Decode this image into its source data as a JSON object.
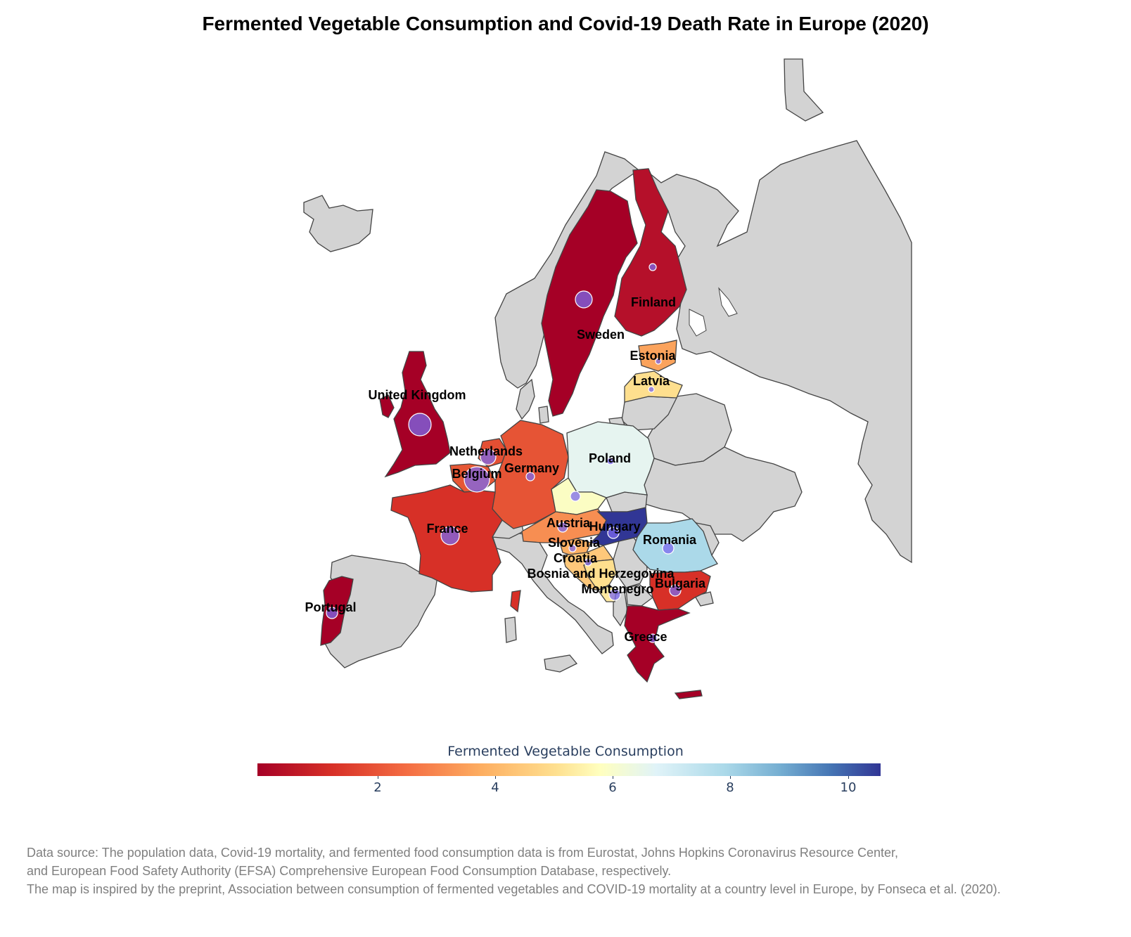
{
  "title": "Fermented Vegetable Consumption and Covid-19 Death Rate in Europe (2020)",
  "colorbar": {
    "title": "Fermented Vegetable Consumption",
    "ticks": [
      "2",
      "4",
      "6",
      "8",
      "10"
    ],
    "range": [
      0,
      10.6
    ],
    "colorscale": "RdYlBu"
  },
  "colors": {
    "no_data": "#d3d3d3",
    "bubble": "#7b68ee",
    "border": "#444444"
  },
  "countries": [
    {
      "name": "United Kingdom",
      "label": "United Kingdom",
      "color": "#a50026"
    },
    {
      "name": "Sweden",
      "label": "Sweden",
      "color": "#a50026"
    },
    {
      "name": "Finland",
      "label": "Finland",
      "color": "#b5102a"
    },
    {
      "name": "Estonia",
      "label": "Estonia",
      "color": "#fba35c"
    },
    {
      "name": "Latvia",
      "label": "Latvia",
      "color": "#fedf8e"
    },
    {
      "name": "Netherlands",
      "label": "Netherlands",
      "color": "#e34f33"
    },
    {
      "name": "Belgium",
      "label": "Belgium",
      "color": "#e65735"
    },
    {
      "name": "Germany",
      "label": "Germany",
      "color": "#e65435"
    },
    {
      "name": "Poland",
      "label": "Poland",
      "color": "#e6f4f0"
    },
    {
      "name": "Czechia",
      "label": "",
      "color": "#fbfdc3"
    },
    {
      "name": "France",
      "label": "France",
      "color": "#d73027"
    },
    {
      "name": "Austria",
      "label": "Austria",
      "color": "#f78e52"
    },
    {
      "name": "Hungary",
      "label": "Hungary",
      "color": "#313695"
    },
    {
      "name": "Slovenia",
      "label": "Slovenia",
      "color": "#fdb063"
    },
    {
      "name": "Croatia",
      "label": "Croatia",
      "color": "#fec87a"
    },
    {
      "name": "Bosnia and Herzegovina",
      "label": "Bosnia and Herzegovina",
      "color": "#fedf8e"
    },
    {
      "name": "Montenegro",
      "label": "Montenegro",
      "color": "#fee9a0"
    },
    {
      "name": "Romania",
      "label": "Romania",
      "color": "#abd9e9"
    },
    {
      "name": "Bulgaria",
      "label": "Bulgaria",
      "color": "#d73027"
    },
    {
      "name": "Greece",
      "label": "Greece",
      "color": "#a50026"
    },
    {
      "name": "Portugal",
      "label": "Portugal",
      "color": "#a50026"
    }
  ],
  "footnote": [
    "Data source: The population data, Covid-19 mortality, and fermented food consumption data is from Eurostat, Johns Hopkins Coronavirus Resource Center,",
    "and European Food Safety Authority (EFSA) Comprehensive European Food Consumption Database, respectively.",
    "The map is inspired by the preprint, Association between consumption of fermented vegetables and COVID-19 mortality at a country level in Europe, by Fonseca et al. (2020)."
  ]
}
